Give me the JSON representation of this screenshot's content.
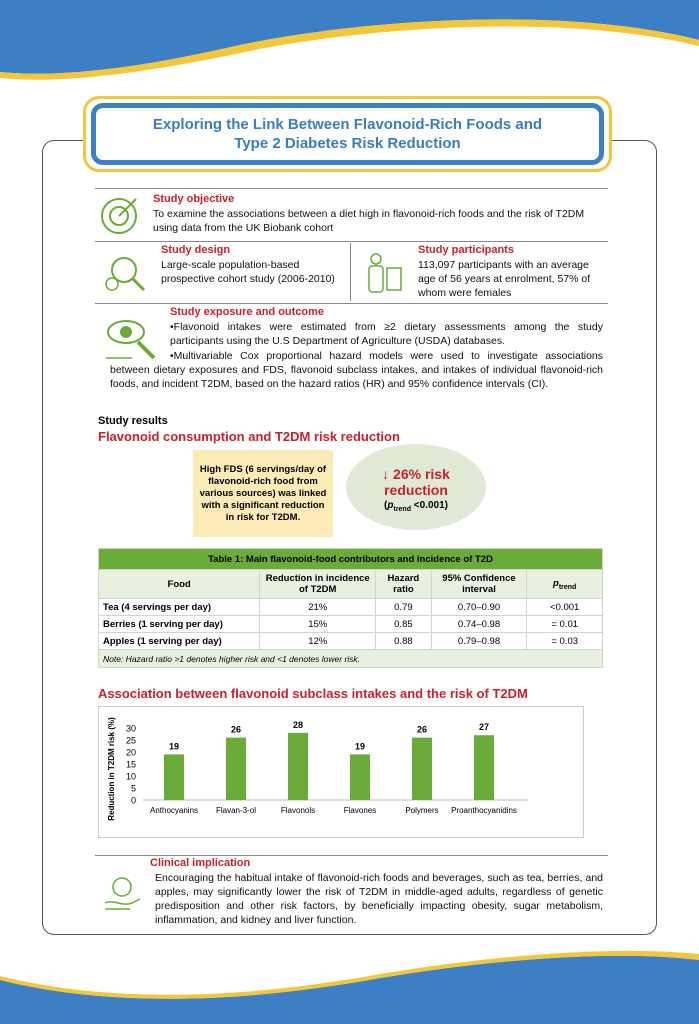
{
  "header": {
    "title": "Exploring the Link Between Flavonoid-Rich Foods and\nType 2 Diabetes Risk Reduction"
  },
  "objective": {
    "heading": "Study objective",
    "text": "To examine the associations between a diet high in flavonoid-rich foods and the risk of T2DM using data from the UK Biobank cohort"
  },
  "design": {
    "heading": "Study design",
    "text": "Large-scale population-based prospective cohort study (2006-2010)"
  },
  "participants": {
    "heading": "Study participants",
    "text": "113,097 participants with an average age of 56 years at enrolment, 57% of whom were females"
  },
  "exposure": {
    "heading": "Study exposure and outcome",
    "bullets": [
      "•Flavonoid intakes were estimated from ≥2 dietary assessments among the study participants using the U.S Department of Agriculture (USDA) databases.",
      "•Multivariable Cox proportional hazard models were used to investigate associations between dietary exposures and FDS, flavonoid subclass intakes, and intakes of individual flavonoid-rich foods, and incident T2DM, based on the hazard ratios (HR) and 95% confidence intervals (CI)."
    ]
  },
  "results": {
    "label": "Study results",
    "heading": "Flavonoid consumption and T2DM risk reduction",
    "box_text": "High FDS (6 servings/day of flavonoid-rich food  from various sources) was linked with a significant reduction in risk for T2DM.",
    "bubble": {
      "headline": "↓ 26% risk reduction",
      "p_parts": [
        "(",
        "p",
        "trend",
        " <0.001)"
      ]
    }
  },
  "table": {
    "title": "Table 1: Main flavonoid-food contributors and incidence of T2D",
    "columns": [
      "Food",
      "Reduction in incidence of T2DM",
      "Hazard ratio",
      "95% Confidence interval",
      [
        "p",
        "trend"
      ]
    ],
    "rows": [
      [
        "Tea (4 servings per day)",
        "21%",
        "0.79",
        "0.70–0.90",
        "<0.001"
      ],
      [
        "Berries (1 serving per day)",
        "15%",
        "0.85",
        "0.74–0.98",
        "= 0.01"
      ],
      [
        "Apples (1 serving per day)",
        "12%",
        "0.88",
        "0.79–0.98",
        "= 0.03"
      ]
    ],
    "note": "Note: Hazard ratio >1 denotes higher risk and <1 denotes lower risk."
  },
  "chart_data": {
    "type": "bar",
    "title": "Association between flavonoid subclass intakes and the risk of T2DM",
    "y_label": "Reduction in T2DM risk (%)",
    "categories": [
      "Anthocyanins",
      "Flavan-3-ol",
      "Flavonols",
      "Flavones",
      "Polymers",
      "Proanthocyanidins"
    ],
    "values": [
      19,
      26,
      28,
      19,
      26,
      27
    ],
    "color": "#6aab3a",
    "ylim": [
      0,
      30
    ],
    "yticks": [
      0,
      5,
      10,
      15,
      20,
      25,
      30
    ]
  },
  "clinical": {
    "heading": "Clinical implication",
    "text": "Encouraging the habitual intake of flavonoid-rich foods and beverages, such as tea, berries, and apples, may significantly lower the risk of T2DM in middle-aged adults, regardless of genetic predisposition and other risk factors, by beneficially impacting obesity, sugar metabolism, inflammation, and kidney and liver function."
  }
}
